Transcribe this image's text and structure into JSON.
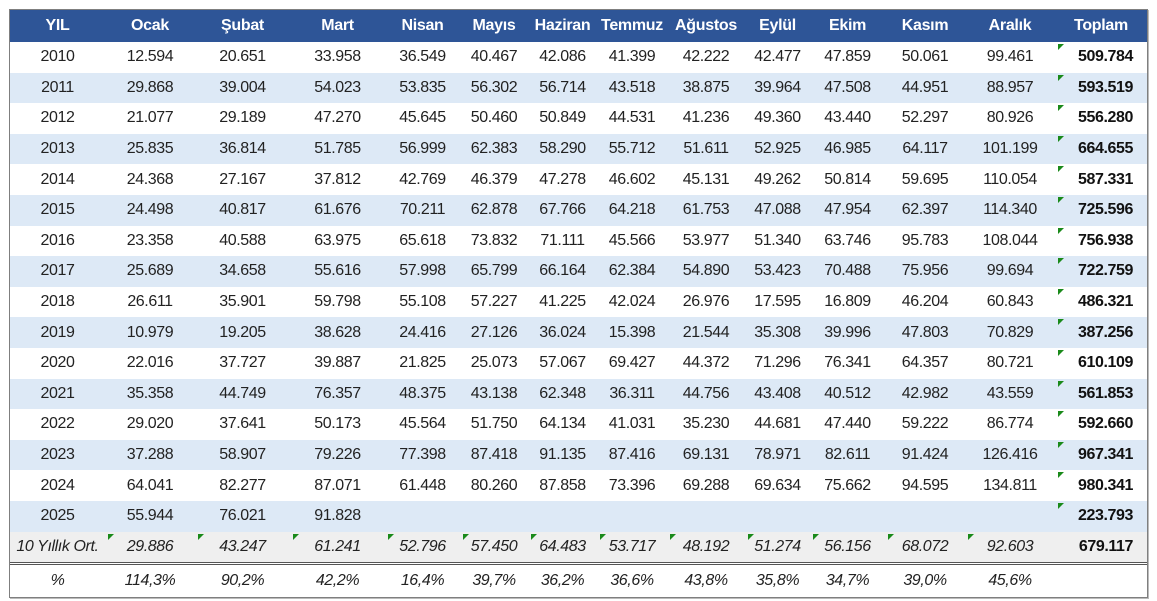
{
  "table": {
    "headers": [
      "YIL",
      "Ocak",
      "Şubat",
      "Mart",
      "Nisan",
      "Mayıs",
      "Haziran",
      "Temmuz",
      "Ağustos",
      "Eylül",
      "Ekim",
      "Kasım",
      "Aralık",
      "Toplam"
    ],
    "rows": [
      [
        "2010",
        "12.594",
        "20.651",
        "33.958",
        "36.549",
        "40.467",
        "42.086",
        "41.399",
        "42.222",
        "42.477",
        "47.859",
        "50.061",
        "99.461",
        "509.784"
      ],
      [
        "2011",
        "29.868",
        "39.004",
        "54.023",
        "53.835",
        "56.302",
        "56.714",
        "43.518",
        "38.875",
        "39.964",
        "47.508",
        "44.951",
        "88.957",
        "593.519"
      ],
      [
        "2012",
        "21.077",
        "29.189",
        "47.270",
        "45.645",
        "50.460",
        "50.849",
        "44.531",
        "41.236",
        "49.360",
        "43.440",
        "52.297",
        "80.926",
        "556.280"
      ],
      [
        "2013",
        "25.835",
        "36.814",
        "51.785",
        "56.999",
        "62.383",
        "58.290",
        "55.712",
        "51.611",
        "52.925",
        "46.985",
        "64.117",
        "101.199",
        "664.655"
      ],
      [
        "2014",
        "24.368",
        "27.167",
        "37.812",
        "42.769",
        "46.379",
        "47.278",
        "46.602",
        "45.131",
        "49.262",
        "50.814",
        "59.695",
        "110.054",
        "587.331"
      ],
      [
        "2015",
        "24.498",
        "40.817",
        "61.676",
        "70.211",
        "62.878",
        "67.766",
        "64.218",
        "61.753",
        "47.088",
        "47.954",
        "62.397",
        "114.340",
        "725.596"
      ],
      [
        "2016",
        "23.358",
        "40.588",
        "63.975",
        "65.618",
        "73.832",
        "71.111",
        "45.566",
        "53.977",
        "51.340",
        "63.746",
        "95.783",
        "108.044",
        "756.938"
      ],
      [
        "2017",
        "25.689",
        "34.658",
        "55.616",
        "57.998",
        "65.799",
        "66.164",
        "62.384",
        "54.890",
        "53.423",
        "70.488",
        "75.956",
        "99.694",
        "722.759"
      ],
      [
        "2018",
        "26.611",
        "35.901",
        "59.798",
        "55.108",
        "57.227",
        "41.225",
        "42.024",
        "26.976",
        "17.595",
        "16.809",
        "46.204",
        "60.843",
        "486.321"
      ],
      [
        "2019",
        "10.979",
        "19.205",
        "38.628",
        "24.416",
        "27.126",
        "36.024",
        "15.398",
        "21.544",
        "35.308",
        "39.996",
        "47.803",
        "70.829",
        "387.256"
      ],
      [
        "2020",
        "22.016",
        "37.727",
        "39.887",
        "21.825",
        "25.073",
        "57.067",
        "69.427",
        "44.372",
        "71.296",
        "76.341",
        "64.357",
        "80.721",
        "610.109"
      ],
      [
        "2021",
        "35.358",
        "44.749",
        "76.357",
        "48.375",
        "43.138",
        "62.348",
        "36.311",
        "44.756",
        "43.408",
        "40.512",
        "42.982",
        "43.559",
        "561.853"
      ],
      [
        "2022",
        "29.020",
        "37.641",
        "50.173",
        "45.564",
        "51.750",
        "64.134",
        "41.031",
        "35.230",
        "44.681",
        "47.440",
        "59.222",
        "86.774",
        "592.660"
      ],
      [
        "2023",
        "37.288",
        "58.907",
        "79.226",
        "77.398",
        "87.418",
        "91.135",
        "87.416",
        "69.131",
        "78.971",
        "82.611",
        "91.424",
        "126.416",
        "967.341"
      ],
      [
        "2024",
        "64.041",
        "82.277",
        "87.071",
        "61.448",
        "80.260",
        "87.858",
        "73.396",
        "69.288",
        "69.634",
        "75.662",
        "94.595",
        "134.811",
        "980.341"
      ],
      [
        "2025",
        "55.944",
        "76.021",
        "91.828",
        "",
        "",
        "",
        "",
        "",
        "",
        "",
        "",
        "",
        "223.793"
      ]
    ],
    "average_row": [
      "10 Yıllık Ort.",
      "29.886",
      "43.247",
      "61.241",
      "52.796",
      "57.450",
      "64.483",
      "53.717",
      "48.192",
      "51.274",
      "56.156",
      "68.072",
      "92.603",
      "679.117"
    ],
    "percent_row": [
      "%",
      "114,3%",
      "90,2%",
      "42,2%",
      "16,4%",
      "39,7%",
      "36,2%",
      "36,6%",
      "43,8%",
      "35,8%",
      "34,7%",
      "39,0%",
      "45,6%",
      ""
    ]
  },
  "colors": {
    "header": "#2e5597",
    "alt_row": "#dde9f6",
    "avg_row": "#efefef",
    "marker": "#1a8a1a"
  }
}
